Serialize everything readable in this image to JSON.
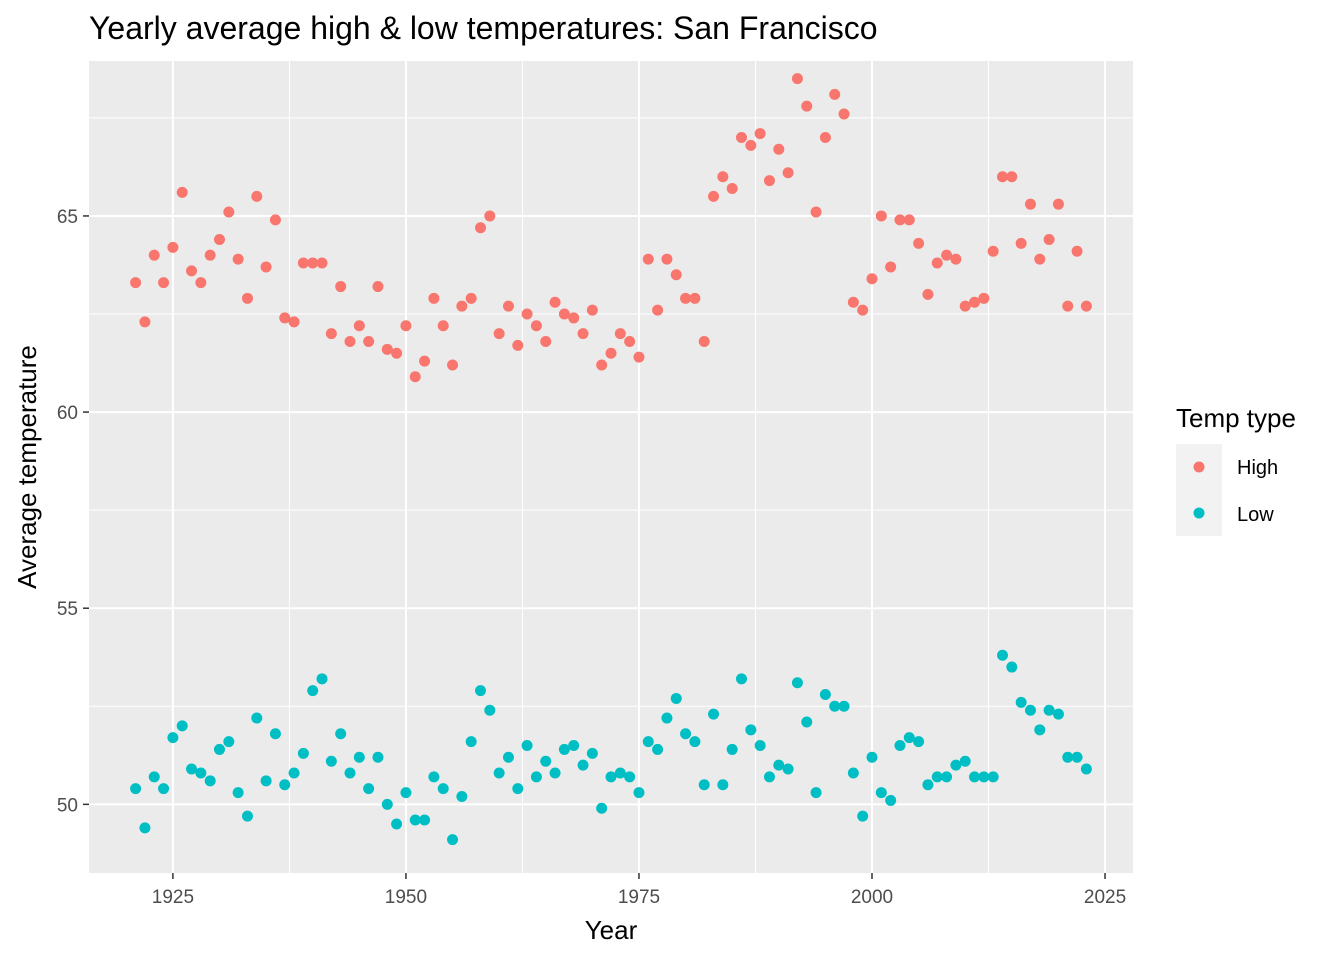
{
  "chart_data": {
    "type": "scatter",
    "title": "Yearly average high & low temperatures: San Francisco",
    "xlabel": "Year",
    "ylabel": "Average temperature",
    "xlim": [
      1916,
      2028
    ],
    "ylim": [
      48.25,
      68.95
    ],
    "x_ticks": [
      1925,
      1950,
      1975,
      2000,
      2025
    ],
    "y_ticks": [
      50,
      55,
      60,
      65
    ],
    "grid": true,
    "legend": {
      "title": "Temp type",
      "position": "right"
    },
    "series": [
      {
        "name": "High",
        "color": "#F8766D",
        "x": [
          1921,
          1922,
          1923,
          1924,
          1925,
          1926,
          1927,
          1928,
          1929,
          1930,
          1931,
          1932,
          1933,
          1934,
          1935,
          1936,
          1937,
          1938,
          1939,
          1940,
          1941,
          1942,
          1943,
          1944,
          1945,
          1946,
          1947,
          1948,
          1949,
          1950,
          1951,
          1952,
          1953,
          1954,
          1955,
          1956,
          1957,
          1958,
          1959,
          1960,
          1961,
          1962,
          1963,
          1964,
          1965,
          1966,
          1967,
          1968,
          1969,
          1970,
          1971,
          1972,
          1973,
          1974,
          1975,
          1976,
          1977,
          1978,
          1979,
          1980,
          1981,
          1982,
          1983,
          1984,
          1985,
          1986,
          1987,
          1988,
          1989,
          1990,
          1991,
          1992,
          1993,
          1994,
          1995,
          1996,
          1997,
          1998,
          1999,
          2000,
          2001,
          2002,
          2003,
          2004,
          2005,
          2006,
          2007,
          2008,
          2009,
          2010,
          2011,
          2012,
          2013,
          2014,
          2015,
          2016,
          2017,
          2018,
          2019,
          2020,
          2021,
          2022,
          2023
        ],
        "y": [
          63.3,
          62.3,
          64.0,
          63.3,
          64.2,
          65.6,
          63.6,
          63.3,
          64.0,
          64.4,
          65.1,
          63.9,
          62.9,
          65.5,
          63.7,
          64.9,
          62.4,
          62.3,
          63.8,
          63.8,
          63.8,
          62.0,
          63.2,
          61.8,
          62.2,
          61.8,
          63.2,
          61.6,
          61.5,
          62.2,
          60.9,
          61.3,
          62.9,
          62.2,
          61.2,
          62.7,
          62.9,
          64.7,
          65.0,
          62.0,
          62.7,
          61.7,
          62.5,
          62.2,
          61.8,
          62.8,
          62.5,
          62.4,
          62.0,
          62.6,
          61.2,
          61.5,
          62.0,
          61.8,
          61.4,
          63.9,
          62.6,
          63.9,
          63.5,
          62.9,
          62.9,
          61.8,
          65.5,
          66.0,
          65.7,
          67.0,
          66.8,
          67.1,
          65.9,
          66.7,
          66.1,
          68.5,
          67.8,
          65.1,
          67.0,
          68.1,
          67.6,
          62.8,
          62.6,
          63.4,
          65.0,
          63.7,
          64.9,
          64.9,
          64.3,
          63.0,
          63.8,
          64.0,
          63.9,
          62.7,
          62.8,
          62.9,
          64.1,
          66.0,
          66.0,
          64.3,
          65.3,
          63.9,
          64.4,
          65.3,
          62.7,
          64.1,
          62.7
        ]
      },
      {
        "name": "Low",
        "color": "#00BFC4",
        "x": [
          1921,
          1922,
          1923,
          1924,
          1925,
          1926,
          1927,
          1928,
          1929,
          1930,
          1931,
          1932,
          1933,
          1934,
          1935,
          1936,
          1937,
          1938,
          1939,
          1940,
          1941,
          1942,
          1943,
          1944,
          1945,
          1946,
          1947,
          1948,
          1949,
          1950,
          1951,
          1952,
          1953,
          1954,
          1955,
          1956,
          1957,
          1958,
          1959,
          1960,
          1961,
          1962,
          1963,
          1964,
          1965,
          1966,
          1967,
          1968,
          1969,
          1970,
          1971,
          1972,
          1973,
          1974,
          1975,
          1976,
          1977,
          1978,
          1979,
          1980,
          1981,
          1982,
          1983,
          1984,
          1985,
          1986,
          1987,
          1988,
          1989,
          1990,
          1991,
          1992,
          1993,
          1994,
          1995,
          1996,
          1997,
          1998,
          1999,
          2000,
          2001,
          2002,
          2003,
          2004,
          2005,
          2006,
          2007,
          2008,
          2009,
          2010,
          2011,
          2012,
          2013,
          2014,
          2015,
          2016,
          2017,
          2018,
          2019,
          2020,
          2021,
          2022,
          2023
        ],
        "y": [
          50.4,
          49.4,
          50.7,
          50.4,
          51.7,
          52.0,
          50.9,
          50.8,
          50.6,
          51.4,
          51.6,
          50.3,
          49.7,
          52.2,
          50.6,
          51.8,
          50.5,
          50.8,
          51.3,
          52.9,
          53.2,
          51.1,
          51.8,
          50.8,
          51.2,
          50.4,
          51.2,
          50.0,
          49.5,
          50.3,
          49.6,
          49.6,
          50.7,
          50.4,
          49.1,
          50.2,
          51.6,
          52.9,
          52.4,
          50.8,
          51.2,
          50.4,
          51.5,
          50.7,
          51.1,
          50.8,
          51.4,
          51.5,
          51.0,
          51.3,
          49.9,
          50.7,
          50.8,
          50.7,
          50.3,
          51.6,
          51.4,
          52.2,
          52.7,
          51.8,
          51.6,
          50.5,
          52.3,
          50.5,
          51.4,
          53.2,
          51.9,
          51.5,
          50.7,
          51.0,
          50.9,
          53.1,
          52.1,
          50.3,
          52.8,
          52.5,
          52.5,
          50.8,
          49.7,
          51.2,
          50.3,
          50.1,
          51.5,
          51.7,
          51.6,
          50.5,
          50.7,
          50.7,
          51.0,
          51.1,
          50.7,
          50.7,
          50.7,
          53.8,
          53.5,
          52.6,
          52.4,
          51.9,
          52.4,
          52.3,
          51.2,
          51.2,
          50.9
        ]
      }
    ]
  }
}
